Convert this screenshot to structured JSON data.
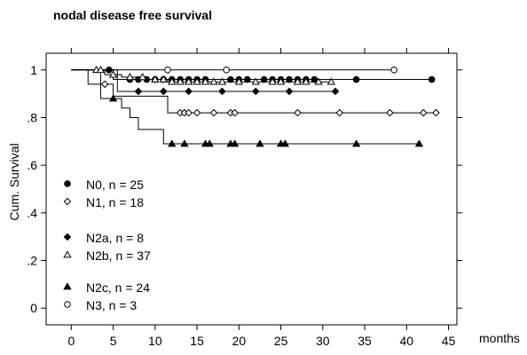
{
  "chart_data": {
    "type": "line",
    "title": "nodal disease free survival",
    "xlabel": "months",
    "ylabel": "Cum. Survival",
    "xlim": [
      -3,
      46
    ],
    "ylim": [
      -0.07,
      1.07
    ],
    "x_ticks": [
      0,
      5,
      10,
      15,
      20,
      25,
      30,
      35,
      40,
      45
    ],
    "y_ticks": [
      0,
      0.2,
      0.4,
      0.6,
      0.8,
      1
    ],
    "x_tick_labels": [
      "0",
      "5",
      "10",
      "15",
      "20",
      "25",
      "30",
      "35",
      "40",
      "45"
    ],
    "y_tick_labels": [
      "0",
      ".2",
      ".4",
      ".6",
      ".8",
      "1"
    ],
    "grid": false,
    "legend_position": "lower-left",
    "series": [
      {
        "name": "N0, n = 25",
        "marker": "filled-circle",
        "steps": [
          [
            0,
            1
          ],
          [
            5,
            1
          ],
          [
            5,
            0.96
          ],
          [
            43,
            0.96
          ]
        ],
        "censored": [
          [
            4.5,
            1
          ],
          [
            7,
            0.96
          ],
          [
            8,
            0.96
          ],
          [
            9,
            0.96
          ],
          [
            10,
            0.96
          ],
          [
            11,
            0.96
          ],
          [
            12,
            0.96
          ],
          [
            13,
            0.96
          ],
          [
            14,
            0.96
          ],
          [
            15,
            0.96
          ],
          [
            16,
            0.96
          ],
          [
            19,
            0.96
          ],
          [
            20,
            0.96
          ],
          [
            21,
            0.96
          ],
          [
            23,
            0.96
          ],
          [
            24,
            0.96
          ],
          [
            25,
            0.96
          ],
          [
            26,
            0.96
          ],
          [
            27,
            0.96
          ],
          [
            28,
            0.96
          ],
          [
            29,
            0.96
          ],
          [
            34,
            0.96
          ],
          [
            43,
            0.96
          ]
        ]
      },
      {
        "name": "N1, n = 18",
        "marker": "open-diamond",
        "steps": [
          [
            0,
            1
          ],
          [
            2,
            1
          ],
          [
            2,
            0.94
          ],
          [
            5,
            0.94
          ],
          [
            5,
            0.89
          ],
          [
            11.5,
            0.89
          ],
          [
            11.5,
            0.82
          ],
          [
            43.5,
            0.82
          ]
        ],
        "censored": [
          [
            4,
            0.94
          ],
          [
            13,
            0.82
          ],
          [
            13.5,
            0.82
          ],
          [
            14,
            0.82
          ],
          [
            15,
            0.82
          ],
          [
            17,
            0.82
          ],
          [
            19,
            0.82
          ],
          [
            19.5,
            0.82
          ],
          [
            27,
            0.82
          ],
          [
            32,
            0.82
          ],
          [
            38,
            0.82
          ],
          [
            42,
            0.82
          ],
          [
            43.5,
            0.82
          ]
        ]
      },
      {
        "name": "N2a, n = 8",
        "marker": "filled-diamond",
        "steps": [
          [
            0,
            1
          ],
          [
            5.5,
            1
          ],
          [
            5.5,
            0.91
          ],
          [
            31.5,
            0.91
          ]
        ],
        "censored": [
          [
            8,
            0.91
          ],
          [
            11,
            0.91
          ],
          [
            14,
            0.91
          ],
          [
            18,
            0.91
          ],
          [
            22,
            0.91
          ],
          [
            26,
            0.91
          ],
          [
            31.5,
            0.91
          ]
        ]
      },
      {
        "name": "N2b, n = 37",
        "marker": "open-triangle",
        "steps": [
          [
            0,
            1
          ],
          [
            4,
            1
          ],
          [
            4,
            0.98
          ],
          [
            6,
            0.98
          ],
          [
            6,
            0.97
          ],
          [
            9,
            0.97
          ],
          [
            9,
            0.96
          ],
          [
            11.5,
            0.96
          ],
          [
            11.5,
            0.95
          ],
          [
            31,
            0.95
          ]
        ],
        "censored": [
          [
            3,
            1
          ],
          [
            3.5,
            1
          ],
          [
            5,
            0.98
          ],
          [
            7,
            0.97
          ],
          [
            8.5,
            0.97
          ],
          [
            10,
            0.96
          ],
          [
            11,
            0.96
          ],
          [
            12,
            0.95
          ],
          [
            13,
            0.95
          ],
          [
            14,
            0.95
          ],
          [
            15,
            0.95
          ],
          [
            16,
            0.95
          ],
          [
            17,
            0.95
          ],
          [
            18,
            0.95
          ],
          [
            20,
            0.95
          ],
          [
            22,
            0.95
          ],
          [
            24,
            0.95
          ],
          [
            25,
            0.95
          ],
          [
            27,
            0.95
          ],
          [
            28,
            0.95
          ],
          [
            29.5,
            0.95
          ],
          [
            31,
            0.95
          ]
        ]
      },
      {
        "name": "N2c, n = 24",
        "marker": "filled-triangle",
        "steps": [
          [
            0,
            1
          ],
          [
            3.5,
            1
          ],
          [
            3.5,
            0.88
          ],
          [
            6,
            0.88
          ],
          [
            6,
            0.84
          ],
          [
            7,
            0.84
          ],
          [
            7,
            0.8
          ],
          [
            8,
            0.8
          ],
          [
            8,
            0.75
          ],
          [
            11,
            0.75
          ],
          [
            11,
            0.69
          ],
          [
            41.5,
            0.69
          ]
        ],
        "censored": [
          [
            5,
            0.88
          ],
          [
            12,
            0.69
          ],
          [
            13.5,
            0.69
          ],
          [
            16,
            0.69
          ],
          [
            16.5,
            0.69
          ],
          [
            19,
            0.69
          ],
          [
            19.5,
            0.69
          ],
          [
            22.5,
            0.69
          ],
          [
            25,
            0.69
          ],
          [
            25.5,
            0.69
          ],
          [
            34,
            0.69
          ],
          [
            41.5,
            0.69
          ]
        ]
      },
      {
        "name": "N3, n = 3",
        "marker": "open-circle",
        "steps": [
          [
            0,
            1
          ],
          [
            38.5,
            1
          ]
        ],
        "censored": [
          [
            11.5,
            1
          ],
          [
            18.5,
            1
          ],
          [
            38.5,
            1
          ]
        ]
      }
    ]
  }
}
